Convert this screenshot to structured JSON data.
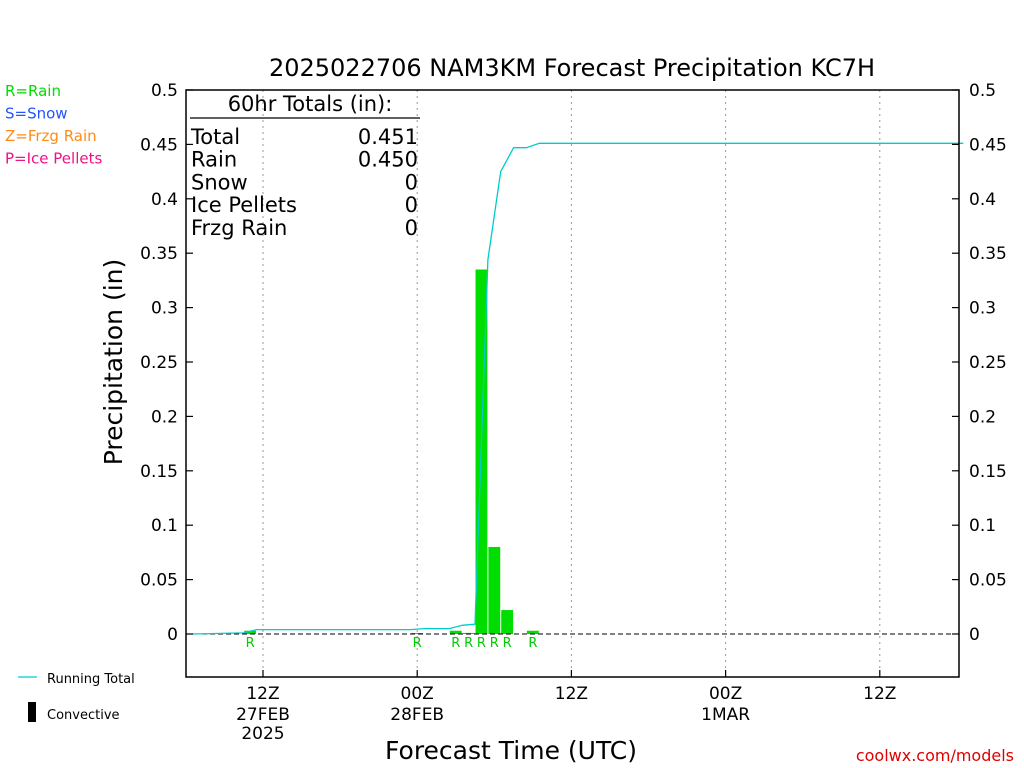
{
  "chart_data": {
    "type": "bar",
    "title": "2025022706 NAM3KM Forecast Precipitation KC7H",
    "ylabel": "Precipitation (in)",
    "xlabel": "Forecast Time (UTC)",
    "ylim": [
      0,
      0.5
    ],
    "y_ticks": [
      "0",
      "0.05",
      "0.1",
      "0.15",
      "0.2",
      "0.25",
      "0.3",
      "0.35",
      "0.4",
      "0.45",
      "0.5"
    ],
    "x_ticks": [
      {
        "hour": 6,
        "line1": "12Z",
        "line2": "27FEB",
        "line3": "2025"
      },
      {
        "hour": 18,
        "line1": "00Z",
        "line2": "28FEB",
        "line3": ""
      },
      {
        "hour": 30,
        "line1": "12Z",
        "line2": "",
        "line3": ""
      },
      {
        "hour": 42,
        "line1": "00Z",
        "line2": "1MAR",
        "line3": ""
      },
      {
        "hour": 54,
        "line1": "12Z",
        "line2": "",
        "line3": ""
      }
    ],
    "xlim_hours": [
      0,
      60
    ],
    "grid": "vertical dotted",
    "bars": [
      {
        "hour": 5,
        "value": 0.003,
        "ptype": "R"
      },
      {
        "hour": 18,
        "value": 0.0005,
        "ptype": "R"
      },
      {
        "hour": 21,
        "value": 0.003,
        "ptype": "R"
      },
      {
        "hour": 22,
        "value": 0.001,
        "ptype": "R"
      },
      {
        "hour": 23,
        "value": 0.335,
        "ptype": "R"
      },
      {
        "hour": 24,
        "value": 0.08,
        "ptype": "R"
      },
      {
        "hour": 25,
        "value": 0.022,
        "ptype": "R"
      },
      {
        "hour": 27,
        "value": 0.003,
        "ptype": "R"
      }
    ],
    "running_total": [
      {
        "hour": 0,
        "value": 0
      },
      {
        "hour": 4,
        "value": 0.001
      },
      {
        "hour": 5,
        "value": 0.004
      },
      {
        "hour": 17,
        "value": 0.004
      },
      {
        "hour": 18,
        "value": 0.005
      },
      {
        "hour": 20,
        "value": 0.005
      },
      {
        "hour": 21,
        "value": 0.008
      },
      {
        "hour": 22,
        "value": 0.009
      },
      {
        "hour": 23,
        "value": 0.344
      },
      {
        "hour": 24,
        "value": 0.425
      },
      {
        "hour": 25,
        "value": 0.447
      },
      {
        "hour": 26,
        "value": 0.447
      },
      {
        "hour": 27,
        "value": 0.451
      },
      {
        "hour": 60,
        "value": 0.451
      }
    ],
    "totals_box": {
      "heading": "60hr Totals (in):",
      "rows": [
        {
          "label": "Total",
          "value": "0.451"
        },
        {
          "label": "Rain",
          "value": "0.450"
        },
        {
          "label": "Snow",
          "value": "0"
        },
        {
          "label": "Ice Pellets",
          "value": "0"
        },
        {
          "label": "Frzg Rain",
          "value": "0"
        }
      ]
    },
    "ptype_legend": [
      {
        "text": "R=Rain",
        "color": "#00dd00"
      },
      {
        "text": "S=Snow",
        "color": "#2255ff"
      },
      {
        "text": "Z=Frzg Rain",
        "color": "#ff8c1a"
      },
      {
        "text": "P=Ice Pellets",
        "color": "#ee1188"
      }
    ],
    "series_legend": [
      {
        "text": "Running Total",
        "color": "#00cccc"
      },
      {
        "text": "Convective",
        "color": "#000000"
      }
    ],
    "credit": "coolwx.com/models",
    "colors": {
      "bar": "#00dd00",
      "line": "#00cccc",
      "zero_line": "#000000",
      "grid": "#999999"
    }
  }
}
